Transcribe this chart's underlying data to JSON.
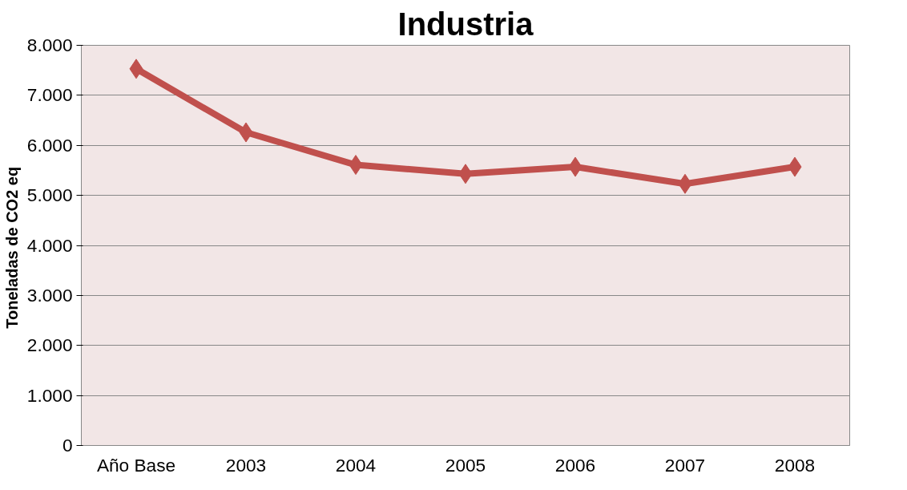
{
  "chart_data": {
    "type": "line",
    "title": "Industria",
    "ylabel": "Toneladas  de CO2 eq",
    "categories": [
      "Año Base",
      "2003",
      "2004",
      "2005",
      "2006",
      "2007",
      "2008"
    ],
    "series": [
      {
        "color": "#c0504d",
        "values": [
          7530,
          6260,
          5610,
          5430,
          5570,
          5230,
          5570
        ]
      }
    ],
    "ylim": [
      0,
      8000
    ],
    "yticks": [
      0,
      {
        "value": 1000,
        "label": "1.000"
      },
      {
        "value": 2000,
        "label": "2.000"
      },
      {
        "value": 3000,
        "label": "3.000"
      },
      {
        "value": 4000,
        "label": "4.000"
      },
      {
        "value": 5000,
        "label": "5.000"
      },
      {
        "value": 6000,
        "label": "6.000"
      },
      {
        "value": 7000,
        "label": "7.000"
      },
      {
        "value": 8000,
        "label": "8.000"
      }
    ],
    "grid": "y",
    "marker": "diamond",
    "line_style": "solid"
  }
}
